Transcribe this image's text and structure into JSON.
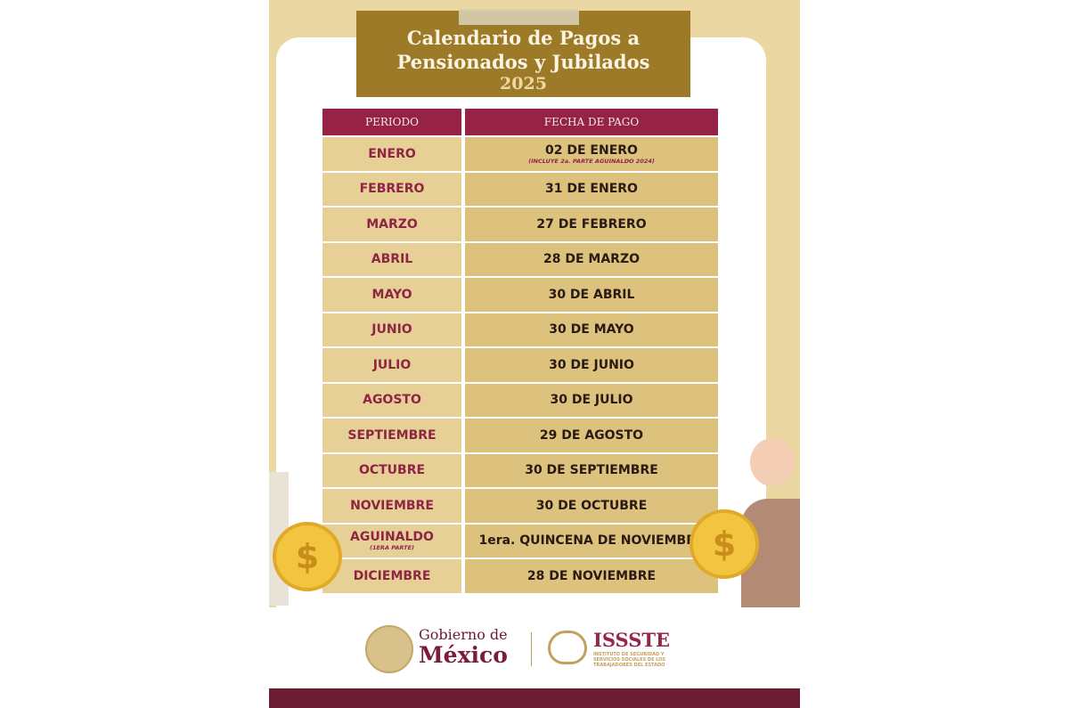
{
  "title": {
    "line1": "Calendario de Pagos a",
    "line2": "Pensionados y Jubilados",
    "year": "2025"
  },
  "table": {
    "headers": [
      "PERIODO",
      "FECHA DE PAGO"
    ],
    "rows": [
      {
        "periodo": "ENERO",
        "fecha": "02 DE ENERO",
        "fecha_note": "(INCLUYE 2a. PARTE AGUINALDO 2024)"
      },
      {
        "periodo": "FEBRERO",
        "fecha": "31 DE ENERO"
      },
      {
        "periodo": "MARZO",
        "fecha": "27 DE FEBRERO"
      },
      {
        "periodo": "ABRIL",
        "fecha": "28 DE MARZO"
      },
      {
        "periodo": "MAYO",
        "fecha": "30 DE ABRIL"
      },
      {
        "periodo": "JUNIO",
        "fecha": "30 DE MAYO"
      },
      {
        "periodo": "JULIO",
        "fecha": "30 DE JUNIO"
      },
      {
        "periodo": "AGOSTO",
        "fecha": "30 DE JULIO"
      },
      {
        "periodo": "SEPTIEMBRE",
        "fecha": "29 DE AGOSTO"
      },
      {
        "periodo": "OCTUBRE",
        "fecha": "30 DE SEPTIEMBRE"
      },
      {
        "periodo": "NOVIEMBRE",
        "fecha": "30 DE OCTUBRE"
      },
      {
        "periodo": "AGUINALDO",
        "periodo_note": "(1ERA PARTE)",
        "fecha": "1era. QUINCENA DE NOVIEMBRE"
      },
      {
        "periodo": "DICIEMBRE",
        "fecha": "28 DE NOVIEMBRE"
      }
    ]
  },
  "footer": {
    "gobierno_line1": "Gobierno de",
    "gobierno_line2": "México",
    "issste": "ISSSTE",
    "issste_subtitle": "INSTITUTO DE SEGURIDAD Y SERVICIOS SOCIALES DE LOS TRABAJADORES DEL ESTADO"
  },
  "colors": {
    "maroon": "#962245",
    "gold": "#9c7a28",
    "beige": "#ead7a2"
  },
  "icons": [
    "coin-dollar-icon",
    "mexico-seal-logo",
    "issste-logo"
  ]
}
